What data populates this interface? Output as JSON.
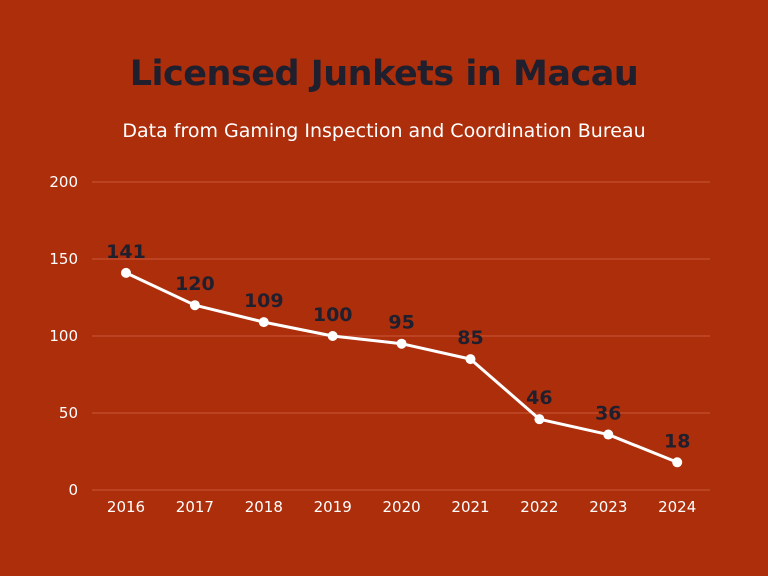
{
  "colors": {
    "background": "#ad2e0b",
    "title": "#1f1f2e",
    "line": "#ffffff",
    "gridline": "#c9583a",
    "data_label": "#1f1f2e"
  },
  "chart_data": {
    "type": "line",
    "title": "Licensed Junkets in Macau",
    "subtitle": "Data from Gaming Inspection and Coordination Bureau",
    "xlabel": "",
    "ylabel": "",
    "categories": [
      "2016",
      "2017",
      "2018",
      "2019",
      "2020",
      "2021",
      "2022",
      "2023",
      "2024"
    ],
    "series": [
      {
        "values": [
          141,
          120,
          109,
          100,
          95,
          85,
          46,
          36,
          18
        ]
      }
    ],
    "ylim": [
      0,
      200
    ],
    "yticks": [
      0,
      50,
      100,
      150,
      200
    ],
    "grid": true,
    "legend": "none",
    "data_labels": true
  }
}
